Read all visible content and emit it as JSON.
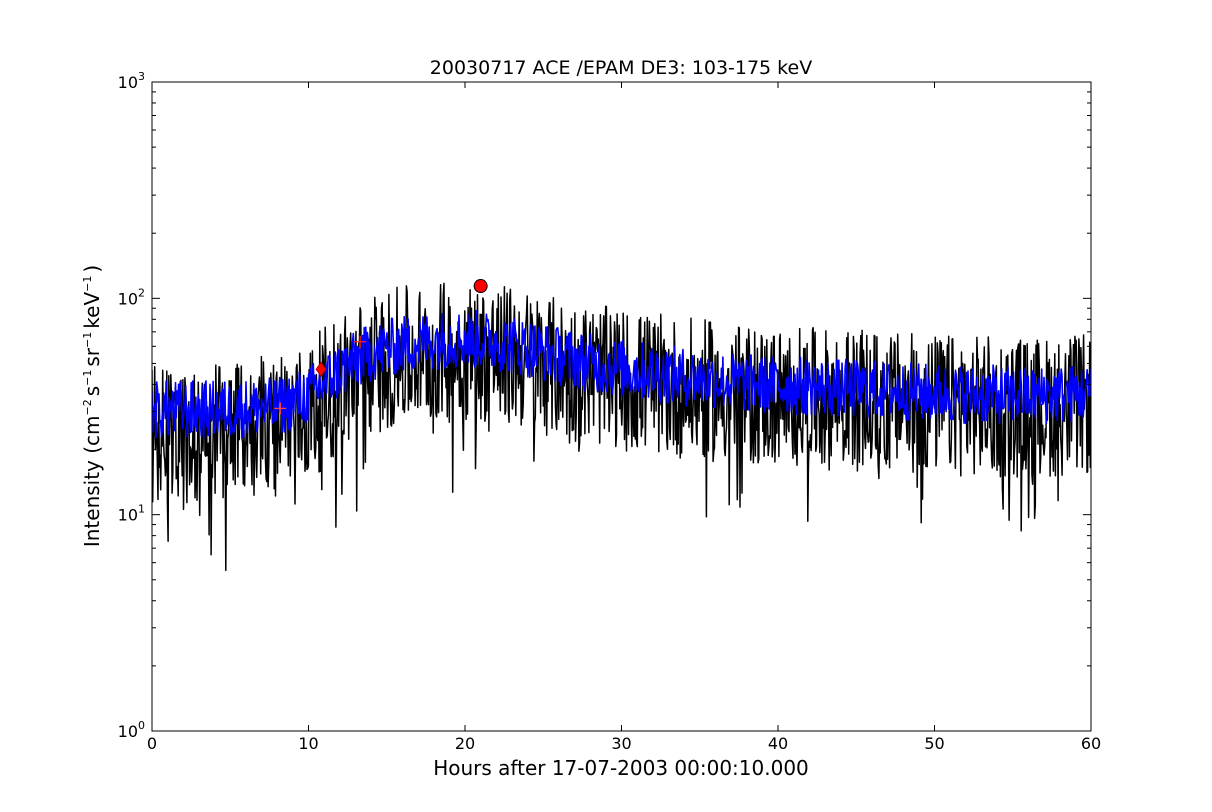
{
  "chart_data": {
    "type": "line",
    "title": "20030717 ACE /EPAM DE3: 103-175 keV",
    "xlabel": "Hours after 17-07-2003 00:00:10.000",
    "ylabel": {
      "text": "Intensity (cm",
      "sup1": "−2",
      "mid1": "s",
      "sup2": "−1",
      "mid2": "sr",
      "sup3": "−1",
      "mid3": "keV",
      "sup4": "−1",
      "end": ")"
    },
    "xlim": [
      0,
      60
    ],
    "ylim": [
      1,
      1000
    ],
    "yscale": "log",
    "grid": false,
    "x_ticks": [
      {
        "value": 0,
        "label": "0"
      },
      {
        "value": 10,
        "label": "10"
      },
      {
        "value": 20,
        "label": "20"
      },
      {
        "value": 30,
        "label": "30"
      },
      {
        "value": 40,
        "label": "40"
      },
      {
        "value": 50,
        "label": "50"
      },
      {
        "value": 60,
        "label": "60"
      }
    ],
    "y_ticks": [
      {
        "value": 1,
        "base": "10",
        "exp": "0"
      },
      {
        "value": 10,
        "base": "10",
        "exp": "1"
      },
      {
        "value": 100,
        "base": "10",
        "exp": "2"
      },
      {
        "value": 1000,
        "base": "10",
        "exp": "3"
      }
    ],
    "series": [
      {
        "role": "raw",
        "color": "#000000",
        "trend": [
          [
            0,
            26
          ],
          [
            4,
            27
          ],
          [
            8,
            29
          ],
          [
            10,
            33
          ],
          [
            12,
            45
          ],
          [
            14,
            55
          ],
          [
            16,
            60
          ],
          [
            18,
            63
          ],
          [
            20,
            63
          ],
          [
            22,
            62
          ],
          [
            24,
            58
          ],
          [
            26,
            53
          ],
          [
            28,
            50
          ],
          [
            30,
            47
          ],
          [
            34,
            43
          ],
          [
            38,
            40
          ],
          [
            44,
            38
          ],
          [
            50,
            36
          ],
          [
            56,
            35
          ],
          [
            60,
            36
          ]
        ],
        "spread_low": 0.42,
        "spread_high": 1.9,
        "min_value": 4,
        "max_value": 120
      },
      {
        "role": "smoothed",
        "color": "#0000ff",
        "trend": [
          [
            0,
            31
          ],
          [
            4,
            31
          ],
          [
            8,
            32
          ],
          [
            10,
            36
          ],
          [
            12,
            47
          ],
          [
            14,
            57
          ],
          [
            16,
            62
          ],
          [
            18,
            65
          ],
          [
            20,
            66
          ],
          [
            22,
            64
          ],
          [
            24,
            60
          ],
          [
            26,
            55
          ],
          [
            28,
            51
          ],
          [
            30,
            48
          ],
          [
            34,
            44
          ],
          [
            38,
            41
          ],
          [
            44,
            39
          ],
          [
            50,
            37
          ],
          [
            56,
            36
          ],
          [
            60,
            37
          ]
        ],
        "spread_low": 0.72,
        "spread_high": 1.35
      }
    ],
    "markers": [
      {
        "shape": "plus",
        "x": 8.2,
        "y": 31,
        "color": "#ff4444"
      },
      {
        "shape": "diamond",
        "x": 10.8,
        "y": 47,
        "color": "#ff0000"
      },
      {
        "shape": "plus",
        "x": 13.3,
        "y": 63,
        "color": "#ff2222"
      },
      {
        "shape": "circle",
        "x": 21.0,
        "y": 114,
        "color": "#ff0000"
      }
    ]
  }
}
